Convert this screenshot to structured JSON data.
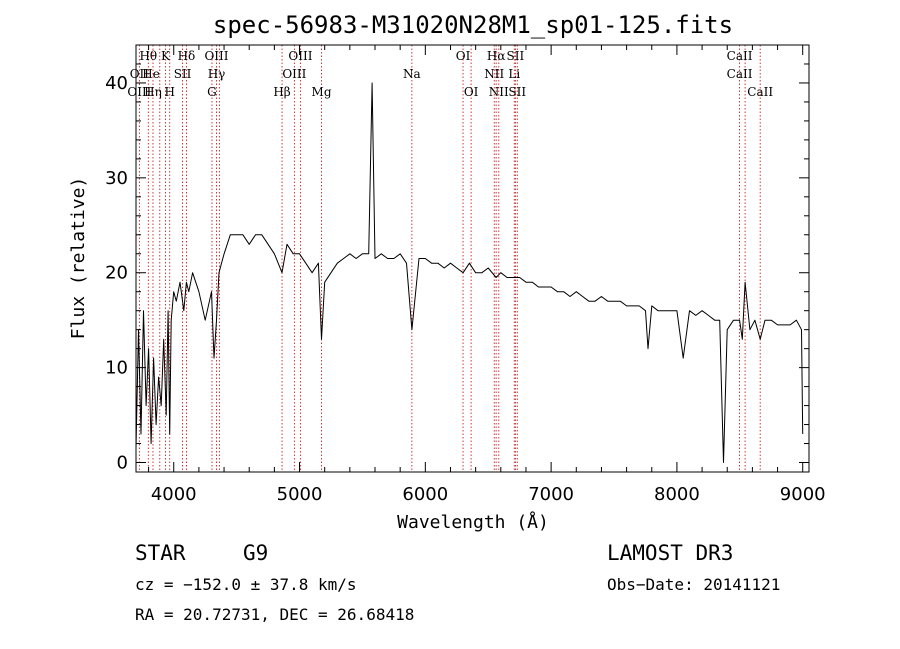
{
  "chart_data": {
    "type": "line",
    "title": "spec-56983-M31020N28M1_sp01-125.fits",
    "xlabel": "Wavelength (Å)",
    "ylabel": "Flux (relative)",
    "xlim": [
      3700,
      9050
    ],
    "ylim": [
      -1,
      44
    ],
    "xticks": [
      4000,
      5000,
      6000,
      7000,
      8000,
      9000
    ],
    "yticks": [
      0,
      10,
      20,
      30,
      40
    ],
    "series": [
      {
        "name": "spectrum",
        "x": [
          3700,
          3720,
          3740,
          3760,
          3780,
          3800,
          3820,
          3840,
          3860,
          3880,
          3900,
          3920,
          3940,
          3955,
          3968,
          3980,
          4000,
          4020,
          4050,
          4080,
          4101,
          4120,
          4150,
          4200,
          4250,
          4300,
          4320,
          4340,
          4360,
          4380,
          4400,
          4450,
          4500,
          4550,
          4600,
          4650,
          4700,
          4750,
          4800,
          4861,
          4900,
          4950,
          5000,
          5050,
          5100,
          5150,
          5175,
          5200,
          5250,
          5300,
          5350,
          5400,
          5450,
          5500,
          5550,
          5577,
          5600,
          5650,
          5700,
          5750,
          5800,
          5850,
          5893,
          5950,
          6000,
          6050,
          6100,
          6150,
          6200,
          6250,
          6300,
          6350,
          6400,
          6450,
          6500,
          6563,
          6600,
          6650,
          6700,
          6750,
          6800,
          6850,
          6900,
          6950,
          7000,
          7050,
          7100,
          7150,
          7200,
          7250,
          7300,
          7350,
          7400,
          7450,
          7500,
          7550,
          7600,
          7650,
          7700,
          7750,
          7770,
          7800,
          7850,
          7900,
          7950,
          8000,
          8050,
          8100,
          8150,
          8200,
          8250,
          8300,
          8340,
          8370,
          8400,
          8450,
          8498,
          8520,
          8542,
          8580,
          8620,
          8662,
          8700,
          8750,
          8800,
          8850,
          8900,
          8950,
          8990,
          9000
        ],
        "values": [
          1.5,
          14,
          3,
          16,
          6,
          12,
          2,
          11,
          4,
          9,
          6,
          13,
          5,
          16,
          3,
          15,
          18,
          17,
          19,
          16,
          19,
          18,
          20,
          18,
          15,
          18,
          11,
          15,
          20,
          21,
          22,
          24,
          24,
          24,
          23,
          24,
          24,
          23,
          22,
          20,
          23,
          22,
          22,
          21,
          20,
          21,
          13,
          19,
          20,
          21,
          21.5,
          22,
          21.5,
          22,
          22,
          40,
          21.5,
          22,
          21.5,
          21.5,
          22,
          21,
          14,
          21.5,
          21.5,
          21,
          21,
          20.5,
          21,
          20.5,
          20,
          21,
          20,
          20,
          20.5,
          19.5,
          20,
          19.5,
          19.5,
          19.5,
          19,
          19,
          18.5,
          18.5,
          18.5,
          18,
          18,
          17.5,
          18,
          17.5,
          17,
          17,
          17.5,
          17,
          17,
          17,
          16.5,
          16.5,
          16.5,
          16,
          12,
          16.5,
          16,
          16,
          16,
          16,
          11,
          16,
          15.5,
          16,
          15.5,
          15,
          15,
          0,
          14,
          15,
          15,
          13,
          19,
          14,
          15,
          13,
          15,
          15,
          14.5,
          14.5,
          14.5,
          15,
          14,
          3
        ]
      }
    ],
    "line_labels": [
      {
        "text": "Hθ",
        "x": 3798,
        "row": 1
      },
      {
        "text": "OII",
        "x": 3727,
        "row": 2
      },
      {
        "text": "OIII",
        "x": 3727,
        "row": 3
      },
      {
        "text": "K",
        "x": 3934,
        "row": 1
      },
      {
        "text": "He",
        "x": 3820,
        "row": 2
      },
      {
        "text": "Hη",
        "x": 3835,
        "row": 3
      },
      {
        "text": "H",
        "x": 3968,
        "row": 3
      },
      {
        "text": "Hδ",
        "x": 4101,
        "row": 1
      },
      {
        "text": "SII",
        "x": 4070,
        "row": 2
      },
      {
        "text": "OIII",
        "x": 4340,
        "row": 1
      },
      {
        "text": "Hγ",
        "x": 4340,
        "row": 2
      },
      {
        "text": "G",
        "x": 4304,
        "row": 3
      },
      {
        "text": "OIII",
        "x": 5007,
        "row": 1
      },
      {
        "text": "OIII",
        "x": 4959,
        "row": 2
      },
      {
        "text": "Hβ",
        "x": 4861,
        "row": 3
      },
      {
        "text": "Mg",
        "x": 5175,
        "row": 3
      },
      {
        "text": "Na",
        "x": 5893,
        "row": 2
      },
      {
        "text": "OI",
        "x": 6300,
        "row": 1
      },
      {
        "text": "OI",
        "x": 6364,
        "row": 3
      },
      {
        "text": "Hα",
        "x": 6563,
        "row": 1
      },
      {
        "text": "SII",
        "x": 6716,
        "row": 1
      },
      {
        "text": "NII",
        "x": 6548,
        "row": 2
      },
      {
        "text": "Li",
        "x": 6707,
        "row": 2
      },
      {
        "text": "NII",
        "x": 6584,
        "row": 3
      },
      {
        "text": "SII",
        "x": 6731,
        "row": 3
      },
      {
        "text": "CaII",
        "x": 8498,
        "row": 1
      },
      {
        "text": "CaII",
        "x": 8498,
        "row": 2
      },
      {
        "text": "CaII",
        "x": 8662,
        "row": 3
      }
    ],
    "line_markers": [
      3727,
      3798,
      3835,
      3889,
      3934,
      3968,
      4070,
      4101,
      4304,
      4340,
      4363,
      4861,
      4959,
      5007,
      5175,
      5893,
      6300,
      6364,
      6548,
      6563,
      6584,
      6707,
      6716,
      6731,
      8498,
      8542,
      8662
    ]
  },
  "info": {
    "classification": "STAR",
    "subclass": "G9",
    "survey": "LAMOST DR3",
    "cz": "cz = −152.0 ± 37.8 km/s",
    "obs_date": "Obs−Date: 20141121",
    "radec": "RA =  20.72731, DEC =  26.68418"
  }
}
